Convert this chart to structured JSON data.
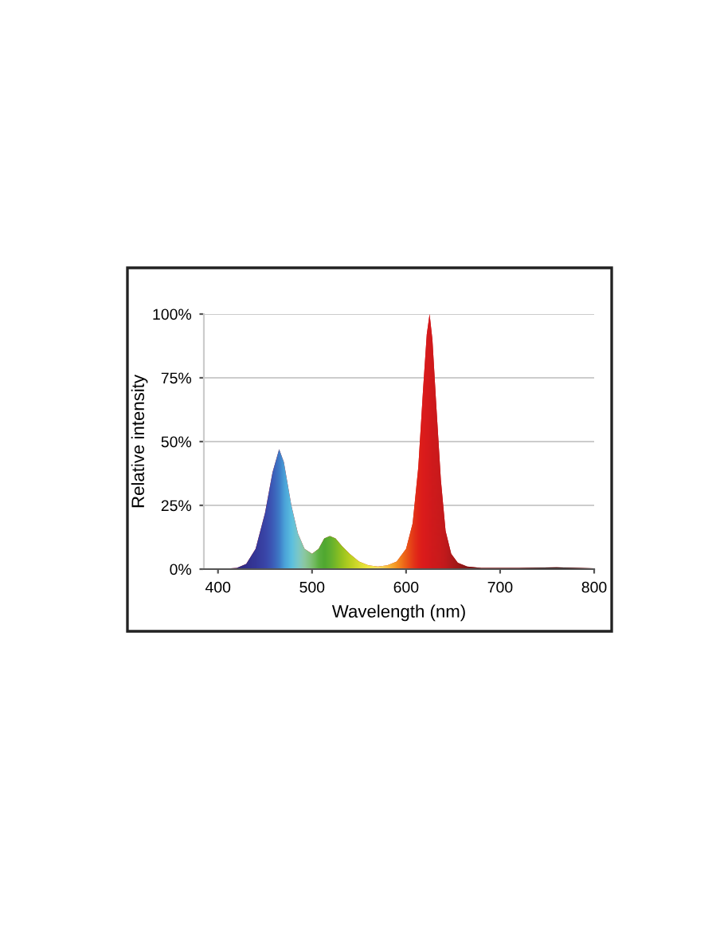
{
  "chart_data": {
    "type": "area",
    "xlabel": "Wavelength (nm)",
    "ylabel": "Relative intensity",
    "x": [
      385,
      400,
      420,
      430,
      440,
      450,
      458,
      465,
      470,
      478,
      485,
      492,
      500,
      507,
      513,
      519,
      525,
      532,
      540,
      550,
      560,
      570,
      580,
      590,
      600,
      607,
      613,
      618,
      622,
      625,
      628,
      632,
      637,
      642,
      648,
      655,
      665,
      680,
      720,
      760,
      800
    ],
    "series": [
      {
        "values": [
          0,
          0,
          0.5,
          2,
          8,
          22,
          38,
          47,
          42,
          25,
          14,
          8,
          6,
          8,
          12,
          13,
          12,
          9,
          6,
          3,
          1.5,
          1,
          1.5,
          3,
          8,
          18,
          40,
          70,
          92,
          100,
          90,
          65,
          35,
          15,
          6,
          2.5,
          1,
          0.5,
          0.5,
          0.7,
          0.3
        ],
        "colors": [
          "#2a2a70",
          "#2a2a70",
          "#2e2a80",
          "#32308c",
          "#353899",
          "#3a46a8",
          "#3c5cb8",
          "#3f7cc8",
          "#4aa0d8",
          "#5cc0e0",
          "#7cc8c8",
          "#8cc8a0",
          "#7cc070",
          "#5cb040",
          "#50a830",
          "#60b030",
          "#78b828",
          "#98c420",
          "#b8d020",
          "#d8dc30",
          "#f0e840",
          "#f8e060",
          "#f8c040",
          "#f49020",
          "#ec5c18",
          "#e43a18",
          "#e02418",
          "#dc1c1c",
          "#d81a1c",
          "#d41a1c",
          "#d01a1c",
          "#cc1a1c",
          "#c81a1c",
          "#c01a1c",
          "#b01a1c",
          "#a01818",
          "#801818",
          "#601414",
          "#401010",
          "#301010",
          "#201010"
        ]
      }
    ],
    "xlim": [
      385,
      800
    ],
    "xticks": [
      400,
      500,
      600,
      700,
      800
    ],
    "ylim": [
      0,
      100
    ],
    "yticks": [
      {
        "value": 0,
        "label": "0%"
      },
      {
        "value": 25,
        "label": "25%"
      },
      {
        "value": 50,
        "label": "50%"
      },
      {
        "value": 75,
        "label": "75%"
      },
      {
        "value": 100,
        "label": "100%"
      }
    ],
    "grid": "y",
    "marker": "none"
  }
}
